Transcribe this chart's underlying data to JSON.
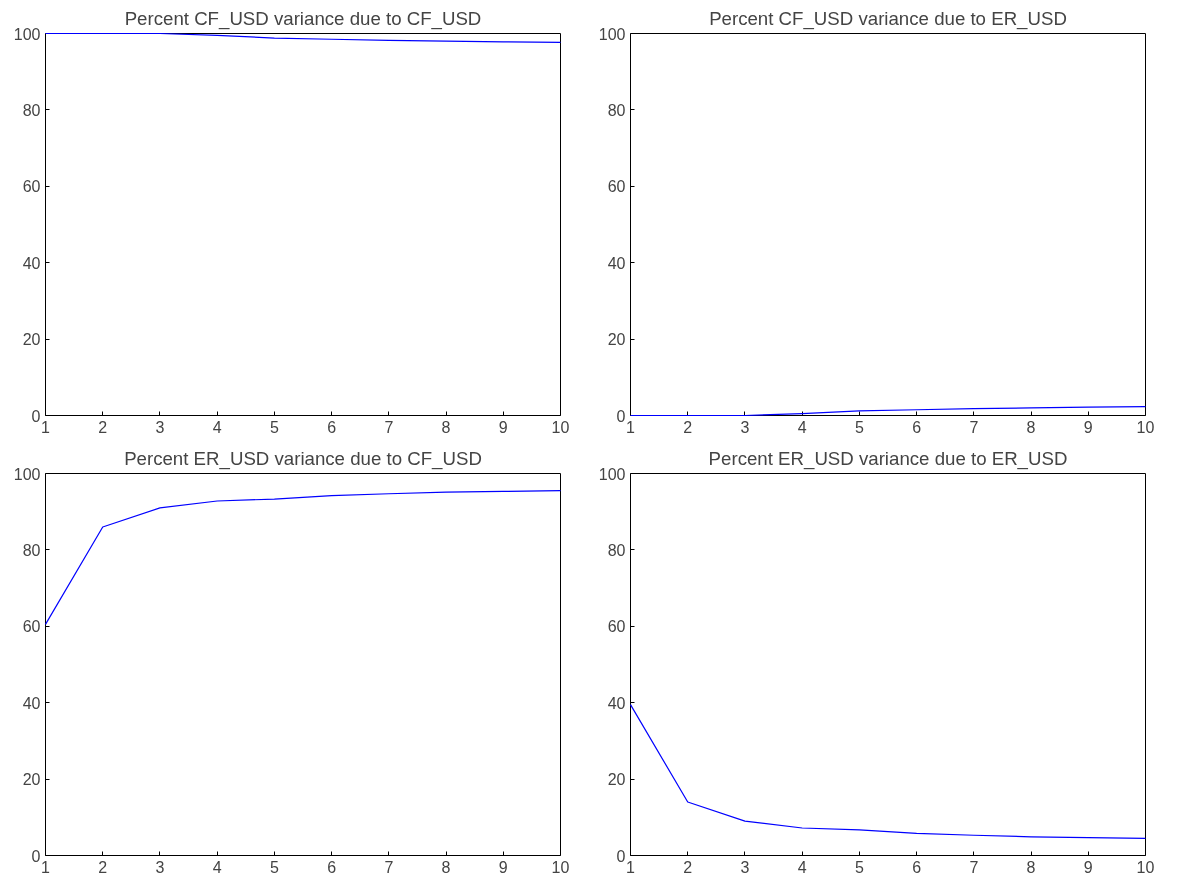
{
  "chart_data": [
    {
      "type": "line",
      "title": "Percent CF_USD variance due to CF_USD",
      "x": [
        1,
        2,
        3,
        4,
        5,
        6,
        7,
        8,
        9,
        10
      ],
      "xlim": [
        1,
        10
      ],
      "xticks": [
        1,
        2,
        3,
        4,
        5,
        6,
        7,
        8,
        9,
        10
      ],
      "ylim": [
        0,
        100
      ],
      "yticks": [
        0,
        20,
        40,
        60,
        80,
        100
      ],
      "grid": false,
      "series": [
        {
          "color": "#0000ff",
          "values": [
            100,
            100,
            100,
            99.5,
            98.8,
            98.5,
            98.2,
            98.0,
            97.8,
            97.7
          ]
        }
      ]
    },
    {
      "type": "line",
      "title": "Percent CF_USD variance due to ER_USD",
      "x": [
        1,
        2,
        3,
        4,
        5,
        6,
        7,
        8,
        9,
        10
      ],
      "xlim": [
        1,
        10
      ],
      "xticks": [
        1,
        2,
        3,
        4,
        5,
        6,
        7,
        8,
        9,
        10
      ],
      "ylim": [
        0,
        100
      ],
      "yticks": [
        0,
        20,
        40,
        60,
        80,
        100
      ],
      "grid": false,
      "series": [
        {
          "color": "#0000ff",
          "values": [
            0,
            0,
            0,
            0.5,
            1.2,
            1.5,
            1.8,
            2.0,
            2.2,
            2.3
          ]
        }
      ]
    },
    {
      "type": "line",
      "title": "Percent ER_USD variance due to CF_USD",
      "x": [
        1,
        2,
        3,
        4,
        5,
        6,
        7,
        8,
        9,
        10
      ],
      "xlim": [
        1,
        10
      ],
      "xticks": [
        1,
        2,
        3,
        4,
        5,
        6,
        7,
        8,
        9,
        10
      ],
      "ylim": [
        0,
        100
      ],
      "yticks": [
        0,
        20,
        40,
        60,
        80,
        100
      ],
      "grid": false,
      "series": [
        {
          "color": "#0000ff",
          "values": [
            60.5,
            86,
            91,
            92.8,
            93.3,
            94.2,
            94.7,
            95.1,
            95.3,
            95.5
          ]
        }
      ]
    },
    {
      "type": "line",
      "title": "Percent ER_USD variance due to ER_USD",
      "x": [
        1,
        2,
        3,
        4,
        5,
        6,
        7,
        8,
        9,
        10
      ],
      "xlim": [
        1,
        10
      ],
      "xticks": [
        1,
        2,
        3,
        4,
        5,
        6,
        7,
        8,
        9,
        10
      ],
      "ylim": [
        0,
        100
      ],
      "yticks": [
        0,
        20,
        40,
        60,
        80,
        100
      ],
      "grid": false,
      "series": [
        {
          "color": "#0000ff",
          "values": [
            39.5,
            14,
            9,
            7.2,
            6.7,
            5.8,
            5.3,
            4.9,
            4.7,
            4.5
          ]
        }
      ]
    }
  ]
}
